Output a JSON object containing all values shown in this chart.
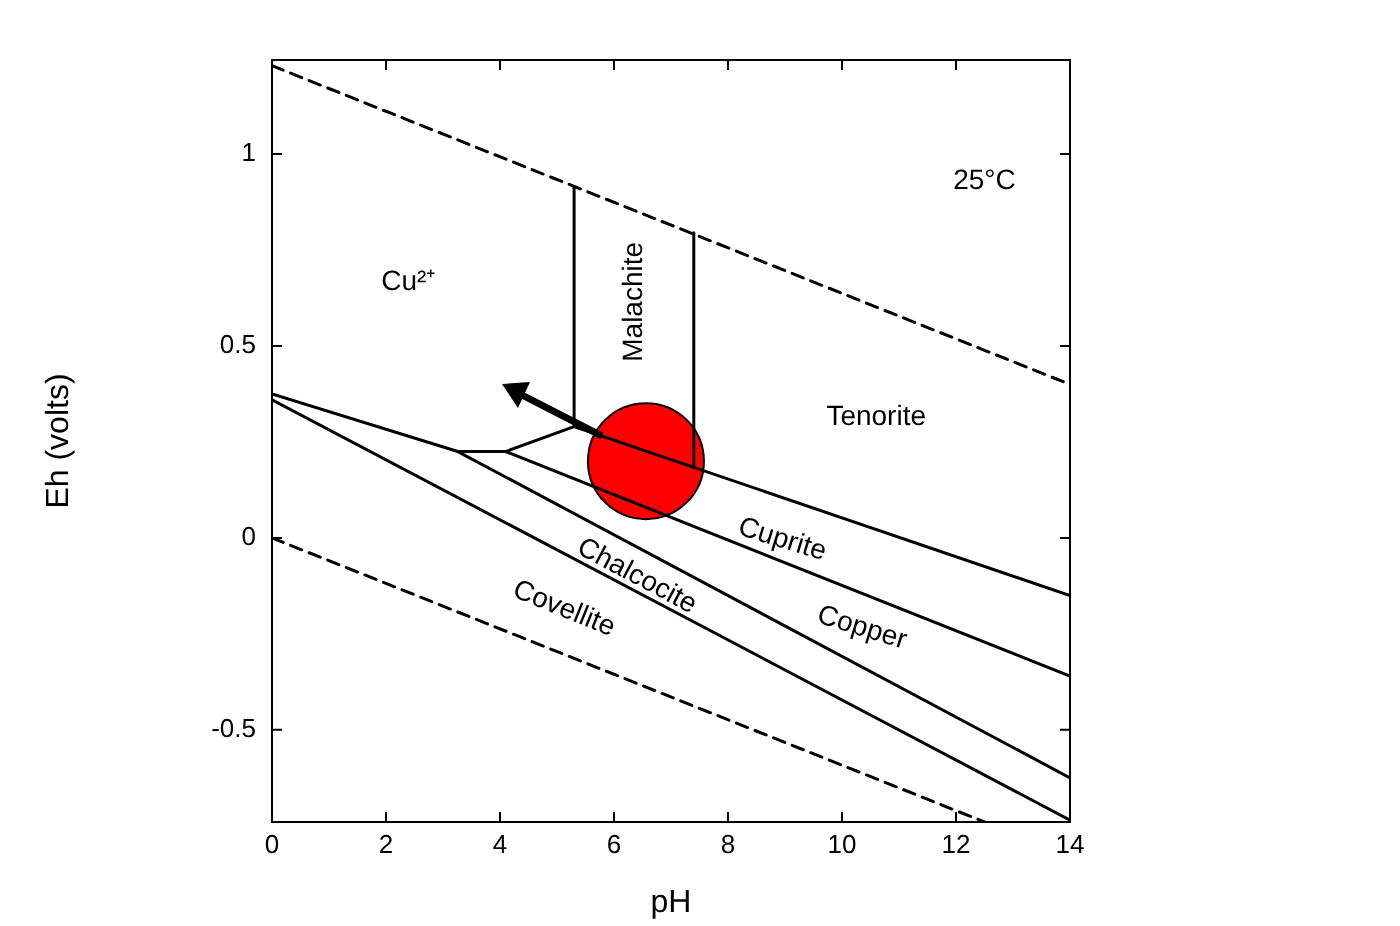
{
  "chart_data": {
    "type": "line",
    "xlabel": "pH",
    "ylabel": "Eh (volts)",
    "xlim": [
      0,
      14
    ],
    "ylim": [
      -0.74,
      1.245
    ],
    "xticks": [
      0,
      2,
      4,
      6,
      8,
      10,
      12,
      14
    ],
    "yticks": [
      {
        "value": -0.5,
        "label": "-0.5"
      },
      0,
      0.5,
      1
    ],
    "grid": false,
    "legend": false,
    "series": [
      {
        "color": "#000000",
        "line_style": "dashed",
        "x": [
          0,
          14
        ],
        "values": [
          1.23,
          0.4
        ]
      },
      {
        "color": "#000000",
        "line_style": "dashed",
        "x": [
          0,
          12.5
        ],
        "values": [
          0,
          -0.74
        ]
      },
      {
        "color": "#000000",
        "line_style": "solid",
        "x": [
          0,
          3.26,
          14
        ],
        "values": [
          0.375,
          0.225,
          -0.625
        ]
      },
      {
        "color": "#000000",
        "line_style": "solid",
        "x": [
          0,
          14
        ],
        "values": [
          0.36,
          -0.735
        ]
      },
      {
        "color": "#000000",
        "line_style": "solid",
        "x": [
          3.26,
          4.1,
          14
        ],
        "values": [
          0.225,
          0.225,
          -0.36
        ]
      },
      {
        "color": "#000000",
        "line_style": "solid",
        "x": [
          4.1,
          5.3,
          14
        ],
        "values": [
          0.225,
          0.29,
          -0.15
        ]
      },
      {
        "color": "#000000",
        "line_style": "solid",
        "x": [
          5.3,
          5.3
        ],
        "values": [
          0.29,
          0.915
        ]
      },
      {
        "color": "#000000",
        "line_style": "solid",
        "x": [
          7.4,
          7.4
        ],
        "values": [
          0.184,
          0.795
        ]
      },
      {
        "type": "scatter",
        "color": "#ff0000",
        "marker": "circle",
        "x": [
          6.56
        ],
        "values": [
          0.2
        ]
      }
    ],
    "annotations": [
      "25°C",
      "Cu²⁺",
      "Malachite",
      "Tenorite",
      "Cuprite",
      "Copper",
      "Chalcocite",
      "Covellite"
    ]
  }
}
